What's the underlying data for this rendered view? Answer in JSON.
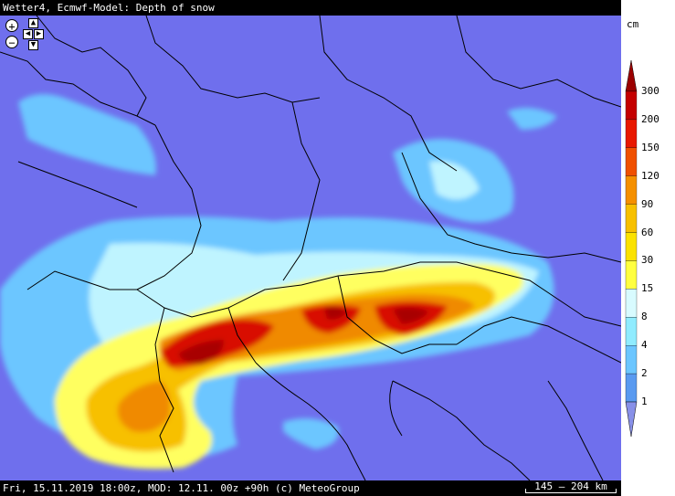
{
  "header": {
    "title": "Wetter4, Ecmwf-Model: Depth of snow"
  },
  "footer": {
    "info": "Fri, 15.11.2019 18:00z, MOD: 12.11. 00z +90h (c) MeteoGroup",
    "scale_label": "145 – 204 km"
  },
  "legend": {
    "unit": "cm",
    "labels": [
      "300",
      "200",
      "150",
      "120",
      "90",
      "60",
      "30",
      "15",
      "8",
      "4",
      "2",
      "1"
    ],
    "colors": [
      "#9b0000",
      "#c40000",
      "#e81800",
      "#f05000",
      "#f59000",
      "#f7c000",
      "#fbe200",
      "#ffff40",
      "#d8fbff",
      "#90ecff",
      "#6cc6ff",
      "#5a9af0",
      "#8890e8"
    ]
  },
  "controls": {
    "zoom_in_icon": "plus-icon",
    "zoom_out_icon": "minus-icon",
    "pan_icons": [
      "arrow-up-icon",
      "arrow-down-icon",
      "arrow-left-icon",
      "arrow-right-icon"
    ]
  },
  "map": {
    "background_color": "#6f6fed",
    "border_color": "#000000",
    "region": "Central Europe / Alps"
  }
}
